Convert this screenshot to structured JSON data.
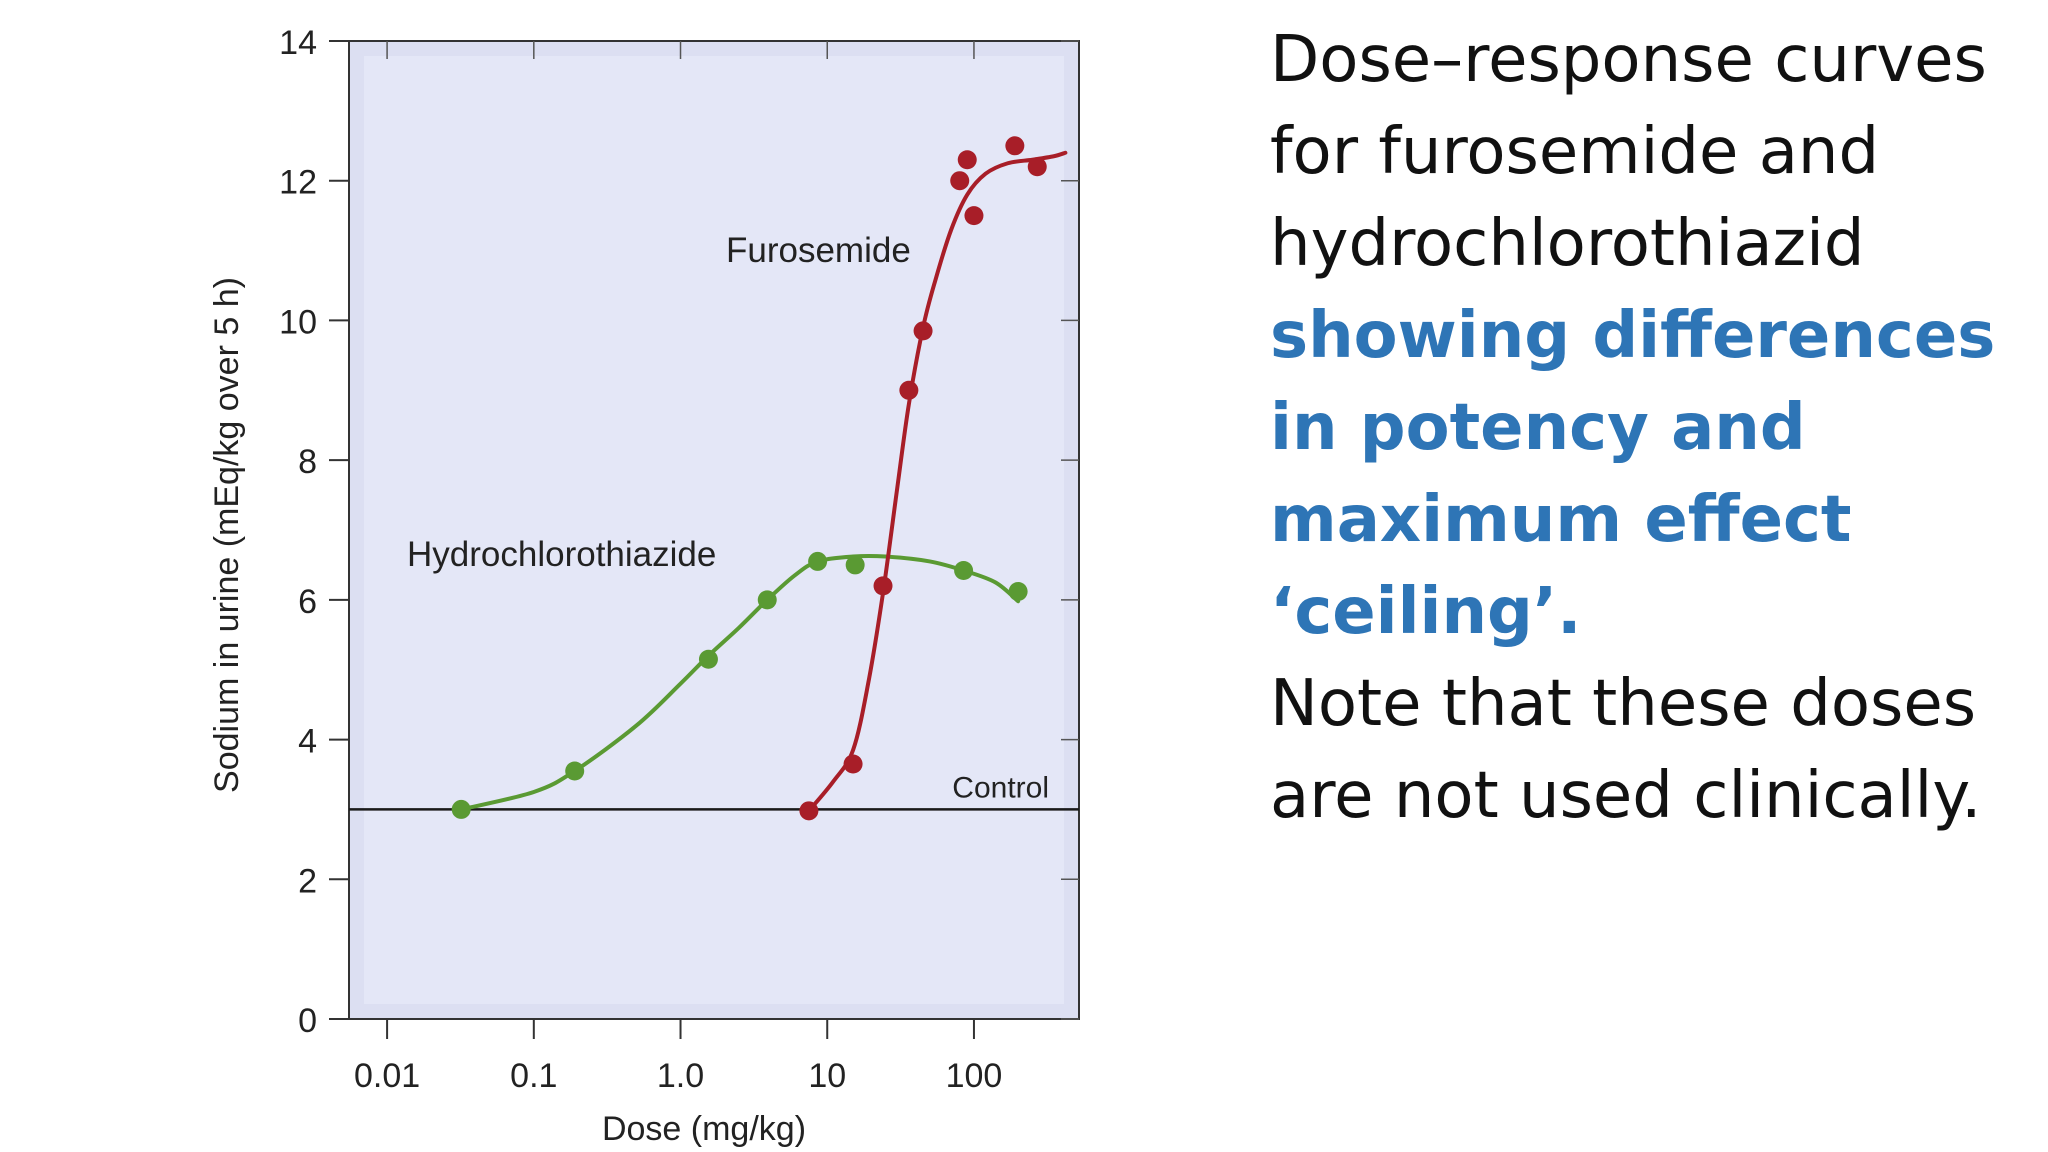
{
  "chart_data": {
    "type": "scatter",
    "xlabel": "Dose (mg/kg)",
    "ylabel": "Sodium in urine (mEq/kg over 5 h)",
    "xscale": "log",
    "xlim": [
      0.0055,
      520
    ],
    "ylim": [
      0,
      14
    ],
    "x_ticks": [
      0.01,
      0.1,
      1.0,
      10,
      100
    ],
    "x_tick_labels": [
      "0.01",
      "0.1",
      "1.0",
      "10",
      "100"
    ],
    "y_ticks": [
      0,
      2,
      4,
      6,
      8,
      10,
      12,
      14
    ],
    "y_tick_labels": [
      "0",
      "2",
      "4",
      "6",
      "8",
      "10",
      "12",
      "14"
    ],
    "reference_line": {
      "label": "Control",
      "y": 3.0
    },
    "series": [
      {
        "name": "Hydrochlorothiazide",
        "color": "#5a9a33",
        "points": [
          [
            0.032,
            3.0
          ],
          [
            0.19,
            3.55
          ],
          [
            1.55,
            5.15
          ],
          [
            3.9,
            6.0
          ],
          [
            8.6,
            6.55
          ],
          [
            15.5,
            6.5
          ],
          [
            85,
            6.42
          ],
          [
            200,
            6.12
          ]
        ],
        "curve": [
          [
            0.032,
            3.0
          ],
          [
            0.1,
            3.25
          ],
          [
            0.19,
            3.55
          ],
          [
            0.5,
            4.2
          ],
          [
            1.0,
            4.8
          ],
          [
            1.55,
            5.2
          ],
          [
            2.5,
            5.6
          ],
          [
            3.9,
            6.0
          ],
          [
            6,
            6.35
          ],
          [
            8.6,
            6.55
          ],
          [
            15,
            6.62
          ],
          [
            25,
            6.62
          ],
          [
            50,
            6.55
          ],
          [
            85,
            6.42
          ],
          [
            140,
            6.25
          ],
          [
            200,
            5.98
          ]
        ]
      },
      {
        "name": "Furosemide",
        "color": "#a81e28",
        "points": [
          [
            7.5,
            2.98
          ],
          [
            15,
            3.65
          ],
          [
            24,
            6.2
          ],
          [
            36,
            9.0
          ],
          [
            45,
            9.85
          ],
          [
            80,
            12.0
          ],
          [
            90,
            12.3
          ],
          [
            100,
            11.5
          ],
          [
            190,
            12.5
          ],
          [
            270,
            12.2
          ]
        ],
        "curve": [
          [
            7.5,
            2.98
          ],
          [
            11,
            3.4
          ],
          [
            15,
            3.85
          ],
          [
            19,
            4.8
          ],
          [
            24,
            6.1
          ],
          [
            30,
            7.6
          ],
          [
            36,
            8.8
          ],
          [
            45,
            9.9
          ],
          [
            55,
            10.6
          ],
          [
            70,
            11.3
          ],
          [
            90,
            11.8
          ],
          [
            120,
            12.1
          ],
          [
            170,
            12.25
          ],
          [
            250,
            12.3
          ],
          [
            350,
            12.35
          ],
          [
            420,
            12.4
          ]
        ]
      }
    ]
  },
  "description": {
    "intro": "Dose–response curves for furosemide and hydrochlorothiazid",
    "highlight": "showing differences in potency and maximum effect ‘ceiling’.",
    "note": "Note that these doses are not used clinically."
  }
}
